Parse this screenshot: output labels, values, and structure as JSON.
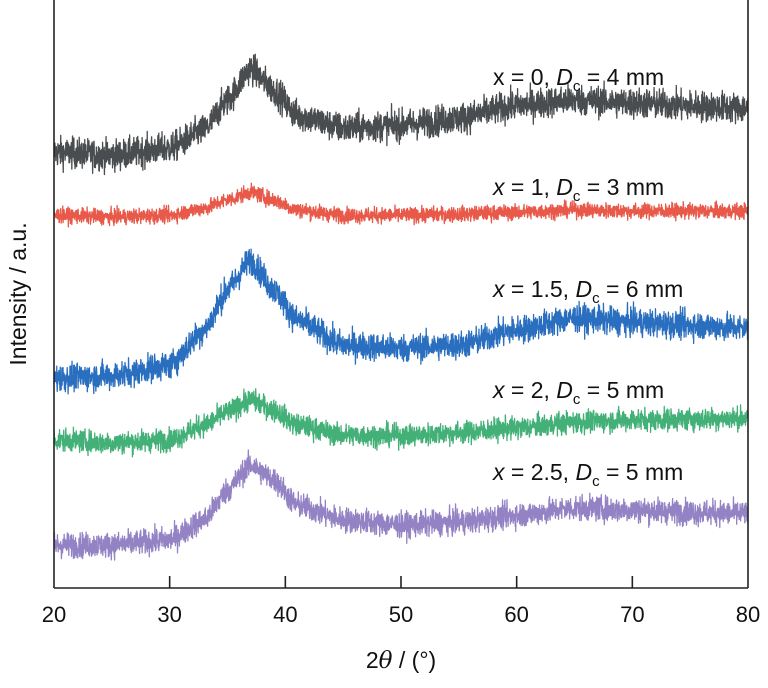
{
  "chart_data": {
    "type": "line",
    "xlabel": {
      "prefix": "2",
      "symbol": "θ",
      "suffix": " / (°)"
    },
    "ylabel": "Intensity / a.u.",
    "xlim": [
      20,
      80
    ],
    "ylim": [
      0,
      100
    ],
    "xticks": [
      "20",
      "30",
      "40",
      "50",
      "60",
      "70",
      "80"
    ],
    "grid": false,
    "legend": "inline labels, right side above each curve",
    "x": [
      20,
      25,
      30,
      33,
      35,
      37,
      39,
      41,
      45,
      50,
      55,
      60,
      65,
      70,
      75,
      80
    ],
    "series": [
      {
        "name": "x = 0, Dc = 4 mm",
        "color": "#4a4d4f",
        "label": {
          "var": "x",
          "var_italic": false,
          "mid": " = 0, ",
          "D": "D",
          "sub": "c",
          "tail": " = 4 mm"
        },
        "values": [
          74.1,
          73.6,
          74.8,
          77.9,
          83.0,
          88.4,
          84.7,
          80.4,
          78.2,
          78.7,
          79.9,
          82.1,
          83.0,
          82.5,
          82.0,
          81.6
        ],
        "noise": 2.2
      },
      {
        "name": "x = 1, Dc = 3 mm",
        "color": "#e8594a",
        "label": {
          "var": "x",
          "var_italic": true,
          "mid": " = 1, ",
          "D": "D",
          "sub": "c",
          "tail": " = 3 mm"
        },
        "values": [
          63.4,
          63.1,
          63.4,
          64.6,
          66.0,
          67.3,
          66.0,
          64.3,
          63.4,
          63.4,
          63.6,
          63.9,
          64.3,
          64.1,
          64.1,
          64.1
        ],
        "noise": 1.1
      },
      {
        "name": "x = 1.5, Dc = 6 mm",
        "color": "#2a6fbf",
        "label": {
          "var": "x",
          "var_italic": true,
          "mid": " = 1.5, ",
          "D": "D",
          "sub": "c",
          "tail": " = 6 mm"
        },
        "values": [
          35.7,
          36.1,
          37.9,
          43.9,
          50.7,
          55.8,
          50.7,
          45.6,
          41.3,
          40.8,
          41.3,
          43.9,
          45.9,
          45.2,
          44.7,
          44.2
        ],
        "noise": 2.0
      },
      {
        "name": "x = 2, Dc = 5 mm",
        "color": "#43b078",
        "label": {
          "var": "x",
          "var_italic": true,
          "mid": " = 2, ",
          "D": "D",
          "sub": "c",
          "tail": " = 5 mm"
        },
        "values": [
          25.2,
          24.7,
          25.2,
          27.7,
          29.9,
          32.0,
          30.3,
          27.7,
          26.0,
          25.9,
          26.4,
          27.2,
          28.2,
          28.6,
          28.7,
          28.9
        ],
        "noise": 1.6
      },
      {
        "name": "x = 2.5, Dc = 5 mm",
        "color": "#9483c4",
        "label": {
          "var": "x",
          "var_italic": true,
          "mid": " = 2.5, ",
          "D": "D",
          "sub": "c",
          "tail": " = 5 mm"
        },
        "values": [
          7.3,
          7.3,
          8.2,
          11.6,
          16.7,
          20.9,
          18.4,
          14.1,
          11.6,
          10.7,
          11.2,
          12.4,
          13.6,
          13.3,
          12.9,
          12.6
        ],
        "noise": 1.8
      }
    ]
  }
}
